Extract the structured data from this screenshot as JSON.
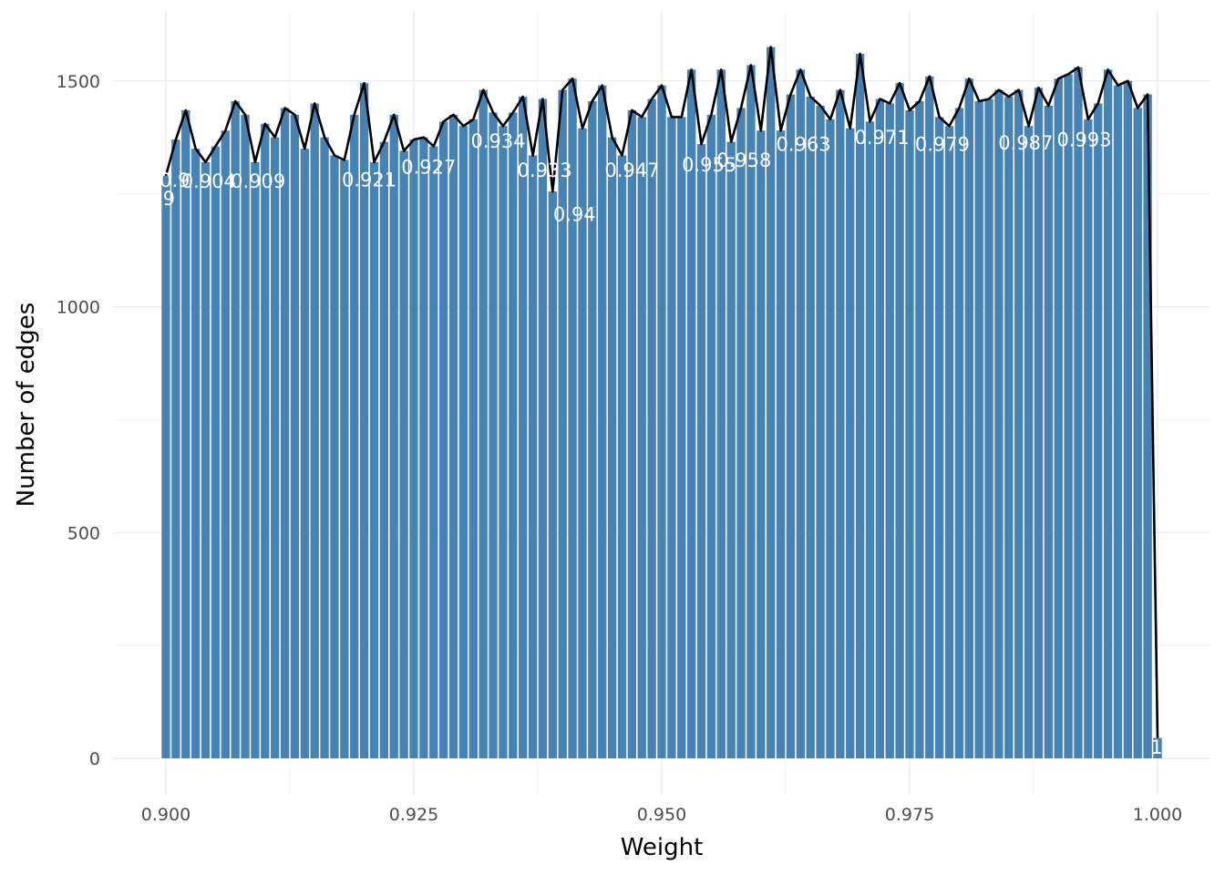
{
  "chart_data": {
    "type": "bar",
    "overlay": "line",
    "xlabel": "Weight",
    "ylabel": "Number of edges",
    "xlim": [
      0.9,
      1.0
    ],
    "ylim": [
      0,
      1600
    ],
    "xticks": [
      "0.900",
      "0.925",
      "0.950",
      "0.975",
      "1.000"
    ],
    "yticks": [
      "0",
      "500",
      "1000",
      "1500"
    ],
    "bar_color": "#4682b4",
    "line_color": "#000000",
    "grid": true,
    "legend": "none",
    "x": [
      0.9,
      0.901,
      0.902,
      0.903,
      0.904,
      0.905,
      0.906,
      0.907,
      0.908,
      0.909,
      0.91,
      0.911,
      0.912,
      0.913,
      0.914,
      0.915,
      0.916,
      0.917,
      0.918,
      0.919,
      0.92,
      0.921,
      0.922,
      0.923,
      0.924,
      0.925,
      0.926,
      0.927,
      0.928,
      0.929,
      0.93,
      0.931,
      0.932,
      0.933,
      0.934,
      0.935,
      0.936,
      0.937,
      0.938,
      0.939,
      0.94,
      0.941,
      0.942,
      0.943,
      0.944,
      0.945,
      0.946,
      0.947,
      0.948,
      0.949,
      0.95,
      0.951,
      0.952,
      0.953,
      0.954,
      0.955,
      0.956,
      0.957,
      0.958,
      0.959,
      0.96,
      0.961,
      0.962,
      0.963,
      0.964,
      0.965,
      0.966,
      0.967,
      0.968,
      0.969,
      0.97,
      0.971,
      0.972,
      0.973,
      0.974,
      0.975,
      0.976,
      0.977,
      0.978,
      0.979,
      0.98,
      0.981,
      0.982,
      0.983,
      0.984,
      0.985,
      0.986,
      0.987,
      0.988,
      0.989,
      0.99,
      0.991,
      0.992,
      0.993,
      0.994,
      0.995,
      0.996,
      0.997,
      0.998,
      0.999,
      1.0
    ],
    "values": [
      1290,
      1370,
      1435,
      1350,
      1320,
      1355,
      1390,
      1455,
      1425,
      1320,
      1405,
      1375,
      1440,
      1425,
      1350,
      1450,
      1375,
      1335,
      1325,
      1425,
      1495,
      1320,
      1365,
      1425,
      1345,
      1370,
      1375,
      1355,
      1410,
      1425,
      1400,
      1415,
      1480,
      1430,
      1400,
      1430,
      1465,
      1335,
      1460,
      1255,
      1480,
      1505,
      1395,
      1455,
      1490,
      1375,
      1335,
      1435,
      1420,
      1460,
      1490,
      1420,
      1420,
      1525,
      1360,
      1425,
      1525,
      1365,
      1440,
      1535,
      1390,
      1575,
      1390,
      1470,
      1525,
      1465,
      1445,
      1415,
      1480,
      1395,
      1560,
      1410,
      1460,
      1450,
      1495,
      1435,
      1455,
      1510,
      1420,
      1400,
      1440,
      1505,
      1455,
      1460,
      1480,
      1465,
      1480,
      1400,
      1485,
      1445,
      1505,
      1515,
      1530,
      1415,
      1450,
      1525,
      1490,
      1500,
      1440,
      1470,
      45
    ],
    "bar_labels": [
      {
        "text": ".9",
        "x": 0.9,
        "y": 1225
      },
      {
        "text": "0.9",
        "x": 0.9009,
        "y": 1265
      },
      {
        "text": "0.904",
        "x": 0.9043,
        "y": 1263
      },
      {
        "text": "0.909",
        "x": 0.9093,
        "y": 1263
      },
      {
        "text": "0.921",
        "x": 0.9205,
        "y": 1266
      },
      {
        "text": "0.927",
        "x": 0.9265,
        "y": 1295
      },
      {
        "text": "0.934",
        "x": 0.9335,
        "y": 1352
      },
      {
        "text": "0.933",
        "x": 0.9382,
        "y": 1288
      },
      {
        "text": "0.94",
        "x": 0.9412,
        "y": 1190
      },
      {
        "text": "0.947",
        "x": 0.947,
        "y": 1288
      },
      {
        "text": "0.955",
        "x": 0.9548,
        "y": 1300
      },
      {
        "text": "0.958",
        "x": 0.9583,
        "y": 1310
      },
      {
        "text": "0.963",
        "x": 0.9643,
        "y": 1345
      },
      {
        "text": "0.971",
        "x": 0.9722,
        "y": 1360
      },
      {
        "text": "0.979",
        "x": 0.9783,
        "y": 1345
      },
      {
        "text": "0.987",
        "x": 0.9867,
        "y": 1348
      },
      {
        "text": "0.993",
        "x": 0.9926,
        "y": 1355
      },
      {
        "text": "1",
        "x": 0.9999,
        "y": 10
      }
    ]
  }
}
